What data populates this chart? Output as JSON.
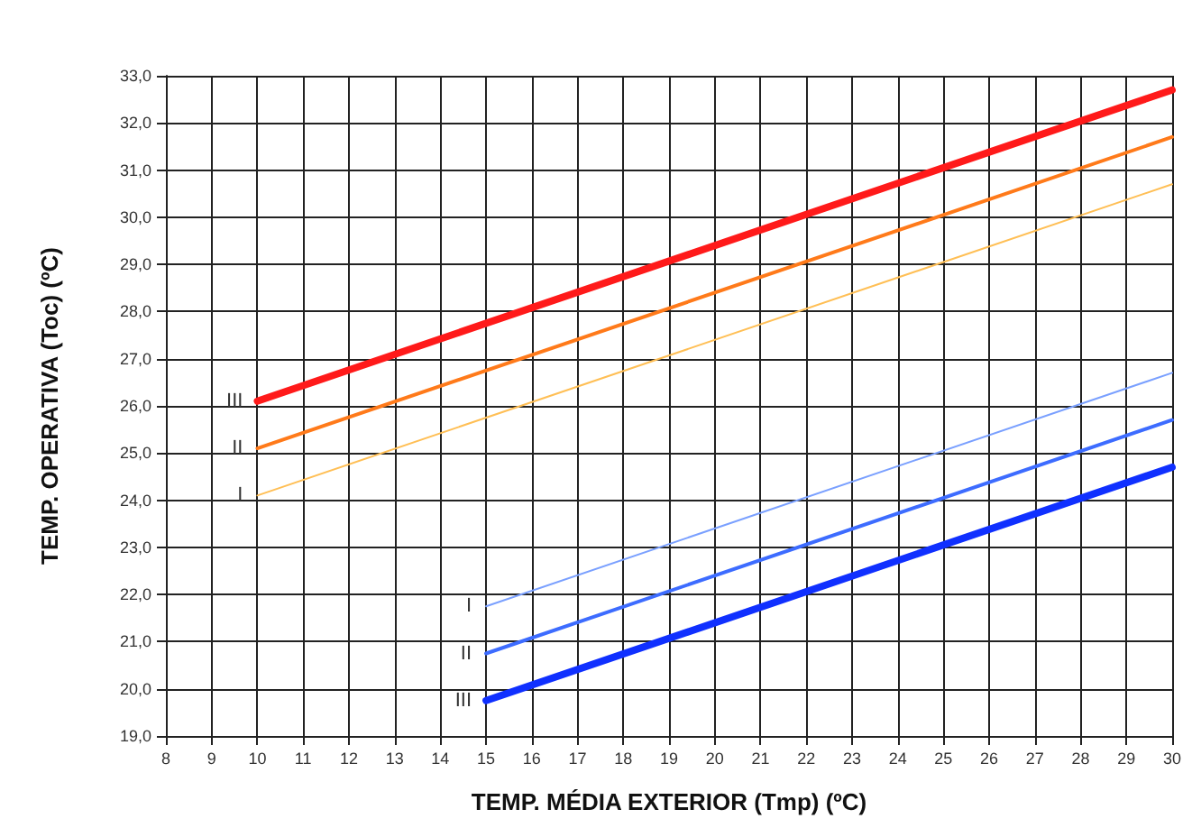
{
  "chart_data": {
    "type": "line",
    "xlabel": "TEMP. MÉDIA EXTERIOR (Tmp) (ºC)",
    "ylabel": "TEMP. OPERATIVA (Toc) (ºC)",
    "xlim": [
      8,
      30
    ],
    "xticks": [
      8,
      9,
      10,
      11,
      12,
      13,
      14,
      15,
      16,
      17,
      18,
      19,
      20,
      21,
      22,
      23,
      24,
      25,
      26,
      27,
      28,
      29,
      30
    ],
    "ylim": [
      19,
      33
    ],
    "yticks": [
      {
        "value": 19,
        "label": "19,0"
      },
      {
        "value": 20,
        "label": "20,0"
      },
      {
        "value": 21,
        "label": "21,0"
      },
      {
        "value": 22,
        "label": "22,0"
      },
      {
        "value": 23,
        "label": "23,0"
      },
      {
        "value": 24,
        "label": "24,0"
      },
      {
        "value": 25,
        "label": "25,0"
      },
      {
        "value": 26,
        "label": "26,0"
      },
      {
        "value": 27,
        "label": "27,0"
      },
      {
        "value": 28,
        "label": "28,0"
      },
      {
        "value": 29,
        "label": "29,0"
      },
      {
        "value": 30,
        "label": "30,0"
      },
      {
        "value": 31,
        "label": "31,0"
      },
      {
        "value": 32,
        "label": "32,0"
      },
      {
        "value": 33,
        "label": "33,0"
      }
    ],
    "grid": true,
    "marker": "none",
    "line_style": "solid",
    "series": [
      {
        "name": "III",
        "color": "#ff1a1a",
        "x": [
          10,
          30
        ],
        "values": [
          26.1,
          32.7
        ]
      },
      {
        "name": "II",
        "color": "#ff7a1a",
        "x": [
          10,
          30
        ],
        "values": [
          25.1,
          31.7
        ]
      },
      {
        "name": "I",
        "color": "#ffbf55",
        "x": [
          10,
          30
        ],
        "values": [
          24.1,
          30.7
        ]
      },
      {
        "name": "I",
        "color": "#7aa0ff",
        "x": [
          15,
          30
        ],
        "values": [
          21.75,
          26.7
        ]
      },
      {
        "name": "II",
        "color": "#3d6cff",
        "x": [
          15,
          30
        ],
        "values": [
          20.75,
          25.7
        ]
      },
      {
        "name": "III",
        "color": "#1030ff",
        "x": [
          15,
          30
        ],
        "values": [
          19.75,
          24.7
        ]
      }
    ]
  }
}
